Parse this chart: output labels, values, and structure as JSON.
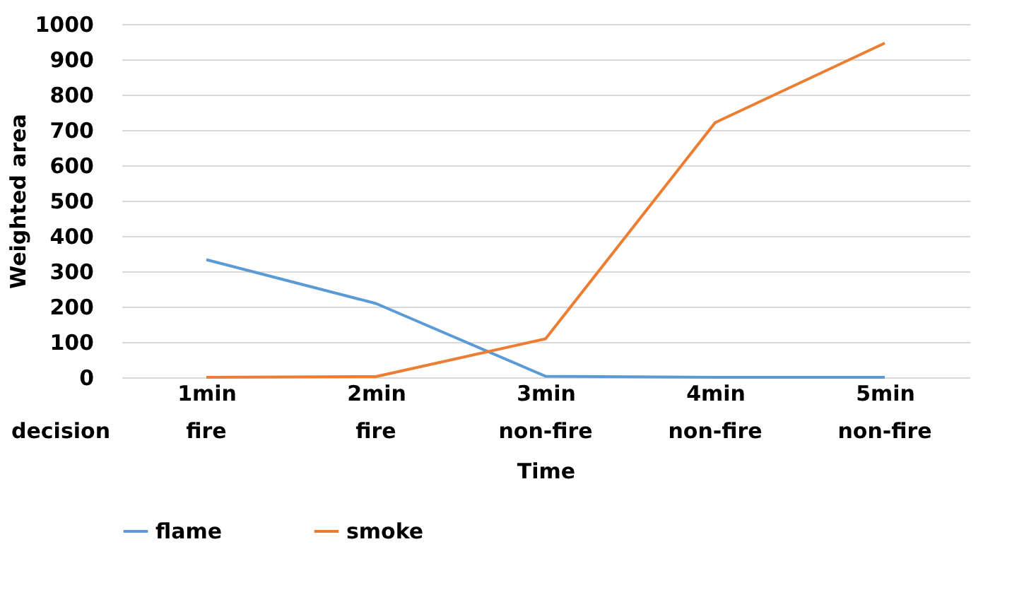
{
  "chart_data": {
    "type": "line",
    "xlabel": "Time",
    "ylabel": "Weighted area",
    "categories": [
      "1min",
      "2min",
      "3min",
      "4min",
      "5min"
    ],
    "series": [
      {
        "name": "flame",
        "color": "#5b9bd5",
        "values": [
          333,
          209,
          3,
          0,
          0
        ]
      },
      {
        "name": "smoke",
        "color": "#ed7d31",
        "values": [
          0,
          2,
          109,
          721,
          946
        ]
      }
    ],
    "annotations": [
      "decision",
      "fire",
      "fire",
      "non-fire",
      "non-fire",
      "non-fire"
    ],
    "ylim": [
      0,
      1000
    ],
    "yticks": [
      0,
      100,
      200,
      300,
      400,
      500,
      600,
      700,
      800,
      900,
      1000
    ],
    "grid": "y",
    "legend": "bottom",
    "marker": "none",
    "line_style": "solid"
  }
}
